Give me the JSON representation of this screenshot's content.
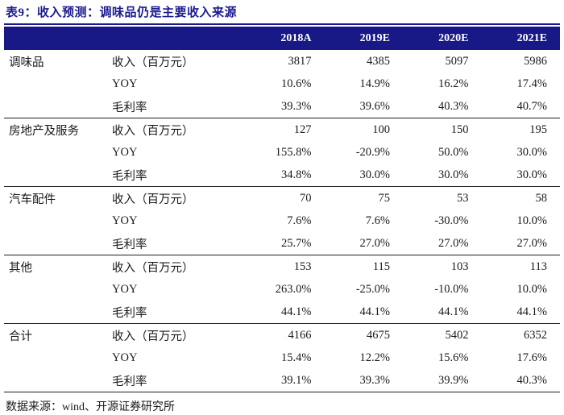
{
  "title": "表9：收入预测：调味品仍是主要收入来源",
  "columns": [
    "2018A",
    "2019E",
    "2020E",
    "2021E"
  ],
  "metric_labels": [
    "收入（百万元）",
    "YOY",
    "毛利率"
  ],
  "groups": [
    {
      "category": "调味品",
      "rows": [
        [
          "3817",
          "4385",
          "5097",
          "5986"
        ],
        [
          "10.6%",
          "14.9%",
          "16.2%",
          "17.4%"
        ],
        [
          "39.3%",
          "39.6%",
          "40.3%",
          "40.7%"
        ]
      ]
    },
    {
      "category": "房地产及服务",
      "rows": [
        [
          "127",
          "100",
          "150",
          "195"
        ],
        [
          "155.8%",
          "-20.9%",
          "50.0%",
          "30.0%"
        ],
        [
          "34.8%",
          "30.0%",
          "30.0%",
          "30.0%"
        ]
      ]
    },
    {
      "category": "汽车配件",
      "rows": [
        [
          "70",
          "75",
          "53",
          "58"
        ],
        [
          "7.6%",
          "7.6%",
          "-30.0%",
          "10.0%"
        ],
        [
          "25.7%",
          "27.0%",
          "27.0%",
          "27.0%"
        ]
      ]
    },
    {
      "category": "其他",
      "rows": [
        [
          "153",
          "115",
          "103",
          "113"
        ],
        [
          "263.0%",
          "-25.0%",
          "-10.0%",
          "10.0%"
        ],
        [
          "44.1%",
          "44.1%",
          "44.1%",
          "44.1%"
        ]
      ]
    },
    {
      "category": "合计",
      "rows": [
        [
          "4166",
          "4675",
          "5402",
          "6352"
        ],
        [
          "15.4%",
          "12.2%",
          "15.6%",
          "17.6%"
        ],
        [
          "39.1%",
          "39.3%",
          "39.9%",
          "40.3%"
        ]
      ]
    }
  ],
  "source": "数据来源：wind、开源证券研究所",
  "colors": {
    "navy_header": "#181887",
    "title_text": "#1A1A8F",
    "header_text": "#FFFFFF",
    "body_text": "#1A1A1A",
    "separator": "#1F1F1F"
  },
  "chart_data": {
    "type": "table",
    "title": "表9：收入预测：调味品仍是主要收入来源",
    "columns": [
      "2018A",
      "2019E",
      "2020E",
      "2021E"
    ],
    "row_groups": [
      {
        "name": "调味品",
        "收入（百万元）": [
          3817,
          4385,
          5097,
          5986
        ],
        "YOY": [
          "10.6%",
          "14.9%",
          "16.2%",
          "17.4%"
        ],
        "毛利率": [
          "39.3%",
          "39.6%",
          "40.3%",
          "40.7%"
        ]
      },
      {
        "name": "房地产及服务",
        "收入（百万元）": [
          127,
          100,
          150,
          195
        ],
        "YOY": [
          "155.8%",
          "-20.9%",
          "50.0%",
          "30.0%"
        ],
        "毛利率": [
          "34.8%",
          "30.0%",
          "30.0%",
          "30.0%"
        ]
      },
      {
        "name": "汽车配件",
        "收入（百万元）": [
          70,
          75,
          53,
          58
        ],
        "YOY": [
          "7.6%",
          "7.6%",
          "-30.0%",
          "10.0%"
        ],
        "毛利率": [
          "25.7%",
          "27.0%",
          "27.0%",
          "27.0%"
        ]
      },
      {
        "name": "其他",
        "收入（百万元）": [
          153,
          115,
          103,
          113
        ],
        "YOY": [
          "263.0%",
          "-25.0%",
          "-10.0%",
          "10.0%"
        ],
        "毛利率": [
          "44.1%",
          "44.1%",
          "44.1%",
          "44.1%"
        ]
      },
      {
        "name": "合计",
        "收入（百万元）": [
          4166,
          4675,
          5402,
          6352
        ],
        "YOY": [
          "15.4%",
          "12.2%",
          "15.6%",
          "17.6%"
        ],
        "毛利率": [
          "39.1%",
          "39.3%",
          "39.9%",
          "40.3%"
        ]
      }
    ],
    "source_note": "数据来源：wind、开源证券研究所"
  }
}
